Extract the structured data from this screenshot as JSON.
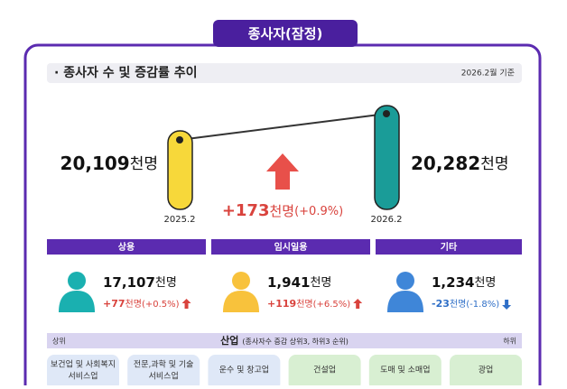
{
  "header": {
    "tab": "종사자(잠정)",
    "title": "· 종사자 수 및 증감률 추이",
    "basis": "2026.2월 기준"
  },
  "total": {
    "before": {
      "number": "20,109",
      "unit": "천명",
      "label": "2025.2"
    },
    "after": {
      "number": "20,282",
      "unit": "천명",
      "label": "2026.2"
    },
    "change": {
      "number": "+173",
      "unit": "천명",
      "rate": "(+0.9%)"
    }
  },
  "groups": [
    {
      "name": "상용",
      "number": "17,107",
      "unit": "천명",
      "change": "+77",
      "change_unit": "천명",
      "rate": "(+0.5%)",
      "direction": "up"
    },
    {
      "name": "임시일용",
      "number": "1,941",
      "unit": "천명",
      "change": "+119",
      "change_unit": "천명",
      "rate": "(+6.5%)",
      "direction": "up"
    },
    {
      "name": "기타",
      "number": "1,234",
      "unit": "천명",
      "change": "-23",
      "change_unit": "천명",
      "rate": "(-1.8%)",
      "direction": "down"
    }
  ],
  "industry": {
    "left": "상위",
    "title": "산업",
    "note": "(종사자수 증감 상위3, 하위3 순위)",
    "right": "하위",
    "items": [
      [
        "보건업 및 사회복지",
        "서비스업"
      ],
      [
        "전문,과학 및 기술",
        "서비스업"
      ],
      [
        "운수 및 창고업"
      ],
      [
        "건설업"
      ],
      [
        "도매 및 소매업"
      ],
      [
        "광업"
      ]
    ]
  }
}
